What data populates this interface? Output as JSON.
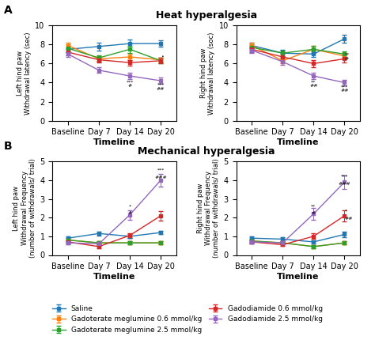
{
  "chart_data": [
    {
      "type": "line",
      "title": "Heat hyperalgesia",
      "panel_label": "A",
      "x_label": "Timeline",
      "y_label": "Left hind paw\nWithdrawal latency (sec)",
      "categories": [
        "Baseline",
        "Day 7",
        "Day 14",
        "Day 20"
      ],
      "ylim": [
        0,
        10
      ],
      "yticks": [
        0,
        2,
        4,
        6,
        8,
        10
      ],
      "marker": "square",
      "grid": false,
      "legend": "lower center",
      "series": [
        {
          "name": "Saline",
          "values": [
            7.5,
            7.8,
            8.1,
            8.1
          ],
          "errors": [
            0.3,
            0.4,
            0.4,
            0.35
          ]
        },
        {
          "name": "Gadoterate meglumine 0.6 mmol/kg",
          "values": [
            7.9,
            6.5,
            6.7,
            6.4
          ],
          "errors": [
            0.3,
            0.3,
            0.3,
            0.25
          ]
        },
        {
          "name": "Gadoterate meglumine 2.5 mmol/kg",
          "values": [
            7.6,
            6.6,
            7.5,
            6.3
          ],
          "errors": [
            0.4,
            0.3,
            0.35,
            0.3
          ]
        },
        {
          "name": "Gadodiamide 0.6 mmol/kg",
          "values": [
            7.2,
            6.4,
            6.1,
            6.3
          ],
          "errors": [
            0.3,
            0.3,
            0.3,
            0.3
          ]
        },
        {
          "name": "Gadodiamide 2.5 mmol/kg",
          "values": [
            7.0,
            5.3,
            4.7,
            4.2
          ],
          "errors": [
            0.3,
            0.3,
            0.3,
            0.3
          ]
        }
      ],
      "annotations": [
        {
          "text": "***",
          "x": "Day 14",
          "y": 3.85
        },
        {
          "text": "#",
          "x": "Day 14",
          "y": 3.45
        },
        {
          "text": "***",
          "x": "Day 20",
          "y": 3.55
        },
        {
          "text": "##",
          "x": "Day 20",
          "y": 3.15
        },
        {
          "text": "•",
          "x": "Day 20",
          "y": 6.55,
          "align": "left"
        }
      ]
    },
    {
      "type": "line",
      "x_label": "Timeline",
      "y_label": "Right hind paw\nWithdrawal latency (soc)",
      "categories": [
        "Baseline",
        "Day 7",
        "Day 14",
        "Day 20"
      ],
      "ylim": [
        0,
        10
      ],
      "yticks": [
        0,
        2,
        4,
        6,
        8,
        10
      ],
      "marker": "square",
      "grid": false,
      "series": [
        {
          "name": "Saline",
          "values": [
            7.9,
            7.1,
            7.0,
            8.6
          ],
          "errors": [
            0.3,
            0.35,
            0.3,
            0.4
          ]
        },
        {
          "name": "Gadoterate meglumine 0.6 mmol/kg",
          "values": [
            7.9,
            6.3,
            7.5,
            6.8
          ],
          "errors": [
            0.3,
            0.3,
            0.4,
            0.3
          ]
        },
        {
          "name": "Gadoterate meglumine 2.5 mmol/kg",
          "values": [
            7.7,
            7.1,
            7.5,
            7.0
          ],
          "errors": [
            0.35,
            0.3,
            0.4,
            0.3
          ]
        },
        {
          "name": "Gadodiamide 0.6 mmol/kg",
          "values": [
            7.5,
            6.7,
            6.0,
            6.5
          ],
          "errors": [
            0.3,
            0.3,
            0.35,
            0.35
          ]
        },
        {
          "name": "Gadodiamide 2.5 mmol/kg",
          "values": [
            7.4,
            6.2,
            4.7,
            4.0
          ],
          "errors": [
            0.3,
            0.3,
            0.3,
            0.3
          ]
        }
      ],
      "annotations": [
        {
          "text": "**",
          "x": "Day 14",
          "y": 3.85
        },
        {
          "text": "##",
          "x": "Day 14",
          "y": 3.45
        },
        {
          "text": "***",
          "x": "Day 20",
          "y": 3.35
        },
        {
          "text": "##",
          "x": "Day 20",
          "y": 2.95
        },
        {
          "text": "**",
          "x": "Day 20",
          "y": 6.7,
          "align": "left"
        },
        {
          "text": "#",
          "x": "Day 20",
          "y": 6.3,
          "align": "left"
        }
      ]
    },
    {
      "type": "line",
      "title": "Mechanical hyperalgesia",
      "panel_label": "B",
      "x_label": "Timeline",
      "y_label": "Left hind paw\nWithdrawal Frequency\n(number of withdrawals/ trial)",
      "categories": [
        "Baseline",
        "Day 7",
        "Day 14",
        "Day 20"
      ],
      "ylim": [
        0,
        5
      ],
      "yticks": [
        0,
        1,
        2,
        3,
        4,
        5
      ],
      "marker": "square",
      "grid": false,
      "series": [
        {
          "name": "Saline",
          "values": [
            0.9,
            1.15,
            1.0,
            1.2
          ],
          "errors": [
            0.1,
            0.1,
            0.1,
            0.1
          ]
        },
        {
          "name": "Gadoterate meglumine 0.6 mmol/kg",
          "values": [
            0.8,
            0.65,
            0.65,
            0.65
          ],
          "errors": [
            0.1,
            0.08,
            0.08,
            0.08
          ]
        },
        {
          "name": "Gadoterate meglumine 2.5 mmol/kg",
          "values": [
            0.8,
            0.65,
            0.65,
            0.65
          ],
          "errors": [
            0.1,
            0.08,
            0.08,
            0.08
          ]
        },
        {
          "name": "Gadodiamide 0.6 mmol/kg",
          "values": [
            0.7,
            0.45,
            1.05,
            2.1
          ],
          "errors": [
            0.1,
            0.08,
            0.12,
            0.25
          ]
        },
        {
          "name": "Gadodiamide 2.5 mmol/kg",
          "values": [
            0.65,
            0.6,
            2.15,
            4.0
          ],
          "errors": [
            0.1,
            0.1,
            0.25,
            0.35
          ]
        }
      ],
      "annotations": [
        {
          "text": "*",
          "x": "Day 14",
          "y": 2.5
        },
        {
          "text": "#",
          "x": "Day 14",
          "y": 2.15
        },
        {
          "text": "***",
          "x": "Day 20",
          "y": 4.45
        },
        {
          "text": "###",
          "x": "Day 20",
          "y": 4.05
        }
      ]
    },
    {
      "type": "line",
      "x_label": "Timeline",
      "y_label": "Right hind paw\nWithdrawal Frequency\n(number of withdrawals/ trial)",
      "categories": [
        "Baseline",
        "Day 7",
        "Day 14",
        "Day 20"
      ],
      "ylim": [
        0,
        5
      ],
      "yticks": [
        0,
        1,
        2,
        3,
        4,
        5
      ],
      "marker": "square",
      "grid": false,
      "series": [
        {
          "name": "Saline",
          "values": [
            0.9,
            0.85,
            0.7,
            1.1
          ],
          "errors": [
            0.1,
            0.1,
            0.1,
            0.15
          ]
        },
        {
          "name": "Gadoterate meglumine 0.6 mmol/kg",
          "values": [
            0.75,
            0.65,
            0.45,
            0.65
          ],
          "errors": [
            0.1,
            0.08,
            0.08,
            0.1
          ]
        },
        {
          "name": "Gadoterate meglumine 2.5 mmol/kg",
          "values": [
            0.75,
            0.65,
            0.45,
            0.65
          ],
          "errors": [
            0.1,
            0.08,
            0.08,
            0.1
          ]
        },
        {
          "name": "Gadodiamide 0.6 mmol/kg",
          "values": [
            0.7,
            0.55,
            1.0,
            2.1
          ],
          "errors": [
            0.1,
            0.08,
            0.15,
            0.3
          ]
        },
        {
          "name": "Gadodiamide 2.5 mmol/kg",
          "values": [
            0.7,
            0.65,
            2.2,
            3.9
          ],
          "errors": [
            0.1,
            0.1,
            0.3,
            0.35
          ]
        }
      ],
      "annotations": [
        {
          "text": "**",
          "x": "Day 14",
          "y": 2.5
        },
        {
          "text": "#",
          "x": "Day 14",
          "y": 2.15
        },
        {
          "text": "***",
          "x": "Day 20",
          "y": 4.1
        },
        {
          "text": "###",
          "x": "Day 20",
          "y": 3.7
        },
        {
          "text": "*",
          "x": "Day 20",
          "y": 2.25,
          "align": "left"
        },
        {
          "text": "##",
          "x": "Day 20",
          "y": 1.85,
          "align": "left"
        }
      ]
    }
  ]
}
